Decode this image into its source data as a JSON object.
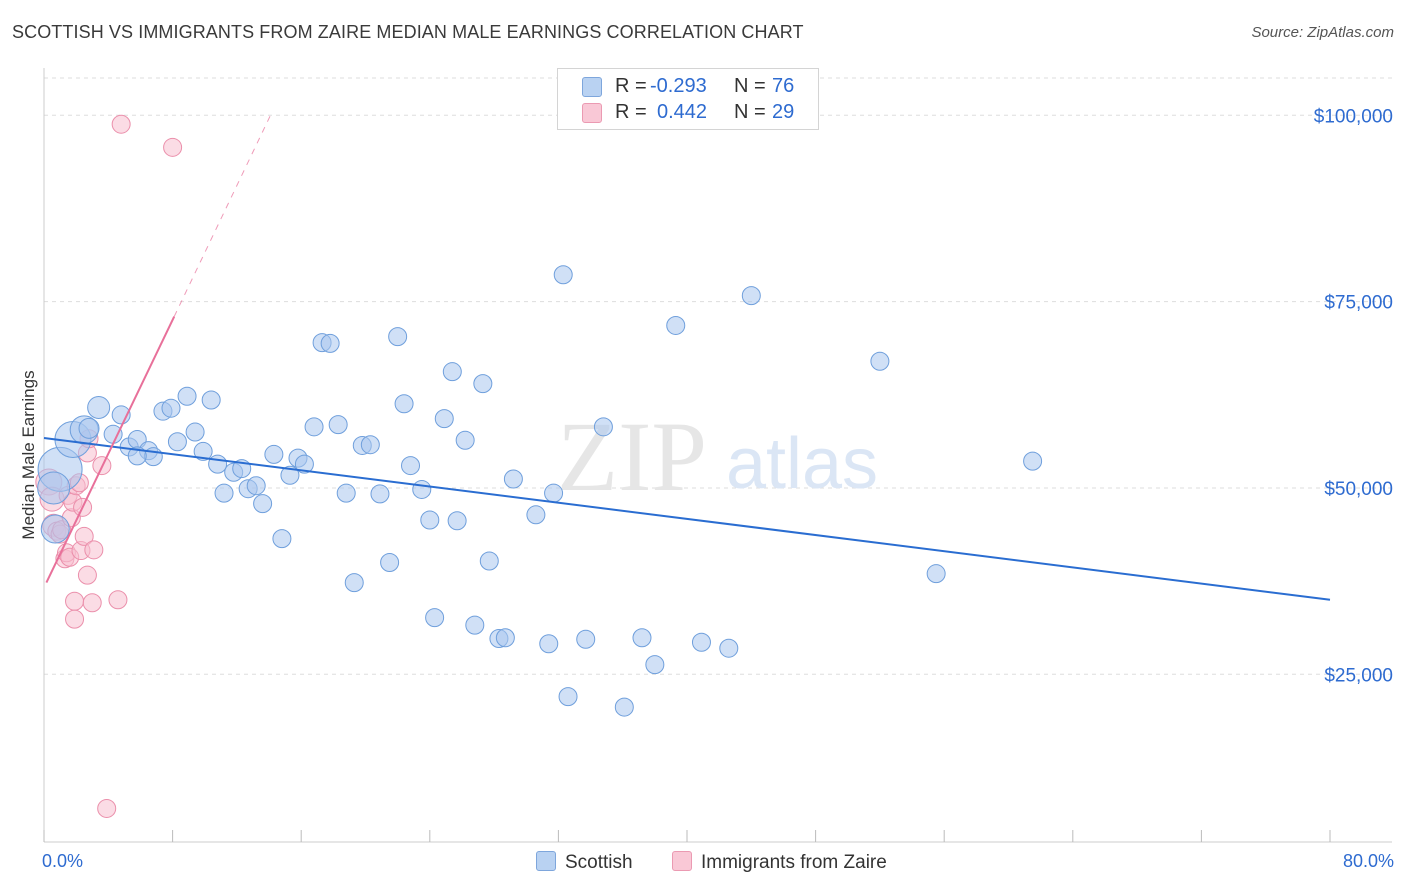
{
  "header": {
    "title": "SCOTTISH VS IMMIGRANTS FROM ZAIRE MEDIAN MALE EARNINGS CORRELATION CHART",
    "source": "Source: ZipAtlas.com"
  },
  "stats": {
    "scottish": {
      "r_label": "R =",
      "r_value": "-0.293",
      "n_label": "N =",
      "n_value": "76"
    },
    "zaire": {
      "r_label": "R =",
      "r_value": "0.442",
      "n_label": "N =",
      "n_value": "29"
    }
  },
  "legend": {
    "scottish": "Scottish",
    "zaire": "Immigrants from Zaire"
  },
  "watermark": {
    "zip": "ZIP",
    "atlas": "atlas"
  },
  "colors": {
    "blue_fill": "#a9c7ef",
    "blue_stroke": "#6f9fdc",
    "blue_line": "#2a6dd1",
    "pink_fill": "#f7c0d0",
    "pink_stroke": "#eb8fab",
    "pink_line": "#e8709a",
    "grid": "#dddddd",
    "axis_text": "#2e6bd0"
  },
  "chart_data": {
    "type": "scatter",
    "title": "SCOTTISH VS IMMIGRANTS FROM ZAIRE MEDIAN MALE EARNINGS CORRELATION CHART",
    "xlabel": "",
    "ylabel": "Median Male Earnings",
    "xlim": [
      0,
      80
    ],
    "ylim": [
      2500,
      105000
    ],
    "x_tick_labels": {
      "min": "0.0%",
      "max": "80.0%"
    },
    "y_ticks": [
      {
        "value": 25000,
        "label": "$25,000"
      },
      {
        "value": 50000,
        "label": "$50,000"
      },
      {
        "value": 75000,
        "label": "$75,000"
      },
      {
        "value": 100000,
        "label": "$100,000"
      }
    ],
    "grid": true,
    "legend_position": "bottom-center",
    "series": [
      {
        "name": "Scottish",
        "r": -0.293,
        "n": 76,
        "trend": {
          "x": [
            0,
            80
          ],
          "y": [
            56700,
            35000
          ]
        },
        "points": [
          {
            "x": 1.0,
            "y": 52500,
            "s": 22
          },
          {
            "x": 1.8,
            "y": 56500,
            "s": 18
          },
          {
            "x": 0.6,
            "y": 50000,
            "s": 16
          },
          {
            "x": 0.7,
            "y": 44500,
            "s": 14
          },
          {
            "x": 2.5,
            "y": 57800,
            "s": 14
          },
          {
            "x": 3.4,
            "y": 60800,
            "s": 11
          },
          {
            "x": 2.8,
            "y": 58000,
            "s": 10
          },
          {
            "x": 4.3,
            "y": 57200,
            "s": 9
          },
          {
            "x": 4.8,
            "y": 59800,
            "s": 9
          },
          {
            "x": 5.3,
            "y": 55500,
            "s": 9
          },
          {
            "x": 5.8,
            "y": 56500,
            "s": 9
          },
          {
            "x": 6.5,
            "y": 55000,
            "s": 9
          },
          {
            "x": 6.8,
            "y": 54200,
            "s": 9
          },
          {
            "x": 7.4,
            "y": 60300,
            "s": 9
          },
          {
            "x": 7.9,
            "y": 60700,
            "s": 9
          },
          {
            "x": 8.3,
            "y": 56200,
            "s": 9
          },
          {
            "x": 8.9,
            "y": 62300,
            "s": 9
          },
          {
            "x": 9.4,
            "y": 57500,
            "s": 9
          },
          {
            "x": 9.9,
            "y": 54900,
            "s": 9
          },
          {
            "x": 10.4,
            "y": 61800,
            "s": 9
          },
          {
            "x": 10.8,
            "y": 53200,
            "s": 9
          },
          {
            "x": 11.2,
            "y": 49300,
            "s": 9
          },
          {
            "x": 11.8,
            "y": 52100,
            "s": 9
          },
          {
            "x": 12.3,
            "y": 52600,
            "s": 9
          },
          {
            "x": 12.7,
            "y": 49900,
            "s": 9
          },
          {
            "x": 13.2,
            "y": 50300,
            "s": 9
          },
          {
            "x": 13.6,
            "y": 47900,
            "s": 9
          },
          {
            "x": 14.3,
            "y": 54500,
            "s": 9
          },
          {
            "x": 14.8,
            "y": 43200,
            "s": 9
          },
          {
            "x": 15.3,
            "y": 51700,
            "s": 9
          },
          {
            "x": 15.8,
            "y": 54000,
            "s": 9
          },
          {
            "x": 16.2,
            "y": 53200,
            "s": 9
          },
          {
            "x": 16.8,
            "y": 58200,
            "s": 9
          },
          {
            "x": 17.3,
            "y": 69500,
            "s": 9
          },
          {
            "x": 17.8,
            "y": 69400,
            "s": 9
          },
          {
            "x": 18.3,
            "y": 58500,
            "s": 9
          },
          {
            "x": 18.8,
            "y": 49300,
            "s": 9
          },
          {
            "x": 19.3,
            "y": 37300,
            "s": 9
          },
          {
            "x": 19.8,
            "y": 55700,
            "s": 9
          },
          {
            "x": 20.3,
            "y": 55800,
            "s": 9
          },
          {
            "x": 20.9,
            "y": 49200,
            "s": 9
          },
          {
            "x": 21.5,
            "y": 40000,
            "s": 9
          },
          {
            "x": 22.0,
            "y": 70300,
            "s": 9
          },
          {
            "x": 22.4,
            "y": 61300,
            "s": 9
          },
          {
            "x": 22.8,
            "y": 53000,
            "s": 9
          },
          {
            "x": 23.5,
            "y": 49800,
            "s": 9
          },
          {
            "x": 24.0,
            "y": 45700,
            "s": 9
          },
          {
            "x": 24.3,
            "y": 32600,
            "s": 9
          },
          {
            "x": 24.9,
            "y": 59300,
            "s": 9
          },
          {
            "x": 25.4,
            "y": 65600,
            "s": 9
          },
          {
            "x": 25.7,
            "y": 45600,
            "s": 9
          },
          {
            "x": 26.2,
            "y": 56400,
            "s": 9
          },
          {
            "x": 26.8,
            "y": 31600,
            "s": 9
          },
          {
            "x": 27.3,
            "y": 64000,
            "s": 9
          },
          {
            "x": 27.7,
            "y": 40200,
            "s": 9
          },
          {
            "x": 28.3,
            "y": 29800,
            "s": 9
          },
          {
            "x": 28.7,
            "y": 29900,
            "s": 9
          },
          {
            "x": 29.2,
            "y": 51200,
            "s": 9
          },
          {
            "x": 30.6,
            "y": 46400,
            "s": 9
          },
          {
            "x": 31.4,
            "y": 29100,
            "s": 9
          },
          {
            "x": 31.7,
            "y": 49300,
            "s": 9
          },
          {
            "x": 32.3,
            "y": 78600,
            "s": 9
          },
          {
            "x": 32.6,
            "y": 22000,
            "s": 9
          },
          {
            "x": 33.7,
            "y": 29700,
            "s": 9
          },
          {
            "x": 34.8,
            "y": 58200,
            "s": 9
          },
          {
            "x": 36.1,
            "y": 20600,
            "s": 9
          },
          {
            "x": 37.2,
            "y": 29900,
            "s": 9
          },
          {
            "x": 38.0,
            "y": 26300,
            "s": 9
          },
          {
            "x": 39.3,
            "y": 71800,
            "s": 9
          },
          {
            "x": 40.9,
            "y": 29300,
            "s": 9
          },
          {
            "x": 42.6,
            "y": 28500,
            "s": 9
          },
          {
            "x": 44.0,
            "y": 75800,
            "s": 9
          },
          {
            "x": 52.0,
            "y": 67000,
            "s": 9
          },
          {
            "x": 55.5,
            "y": 38500,
            "s": 9
          },
          {
            "x": 61.5,
            "y": 53600,
            "s": 9
          },
          {
            "x": 5.8,
            "y": 54300,
            "s": 9
          }
        ]
      },
      {
        "name": "Immigrants from Zaire",
        "r": 0.442,
        "n": 29,
        "trend": {
          "x": [
            0.15,
            8.1
          ],
          "y": [
            37300,
            73000
          ]
        },
        "trend_dashed": {
          "x": [
            8.1,
            14.2
          ],
          "y": [
            73000,
            100500
          ]
        },
        "points": [
          {
            "x": 0.3,
            "y": 50800,
            "s": 13
          },
          {
            "x": 0.5,
            "y": 48500,
            "s": 12
          },
          {
            "x": 0.6,
            "y": 45000,
            "s": 11
          },
          {
            "x": 0.8,
            "y": 44200,
            "s": 9
          },
          {
            "x": 1.0,
            "y": 43800,
            "s": 9
          },
          {
            "x": 1.1,
            "y": 44400,
            "s": 9
          },
          {
            "x": 1.3,
            "y": 40500,
            "s": 9
          },
          {
            "x": 1.4,
            "y": 41300,
            "s": 9
          },
          {
            "x": 1.5,
            "y": 49000,
            "s": 9
          },
          {
            "x": 1.6,
            "y": 40700,
            "s": 9
          },
          {
            "x": 1.7,
            "y": 46000,
            "s": 9
          },
          {
            "x": 1.8,
            "y": 48100,
            "s": 9
          },
          {
            "x": 1.9,
            "y": 34800,
            "s": 9
          },
          {
            "x": 1.9,
            "y": 32400,
            "s": 9
          },
          {
            "x": 2.0,
            "y": 50300,
            "s": 9
          },
          {
            "x": 2.2,
            "y": 50700,
            "s": 9
          },
          {
            "x": 2.3,
            "y": 41600,
            "s": 9
          },
          {
            "x": 2.4,
            "y": 47400,
            "s": 9
          },
          {
            "x": 2.5,
            "y": 43500,
            "s": 9
          },
          {
            "x": 2.7,
            "y": 54700,
            "s": 9
          },
          {
            "x": 2.7,
            "y": 38300,
            "s": 9
          },
          {
            "x": 2.8,
            "y": 56600,
            "s": 9
          },
          {
            "x": 3.0,
            "y": 34600,
            "s": 9
          },
          {
            "x": 3.1,
            "y": 41700,
            "s": 9
          },
          {
            "x": 3.6,
            "y": 53000,
            "s": 9
          },
          {
            "x": 3.9,
            "y": 7000,
            "s": 9
          },
          {
            "x": 4.6,
            "y": 35000,
            "s": 9
          },
          {
            "x": 4.8,
            "y": 98800,
            "s": 9
          },
          {
            "x": 8.0,
            "y": 95700,
            "s": 9
          }
        ]
      }
    ]
  }
}
